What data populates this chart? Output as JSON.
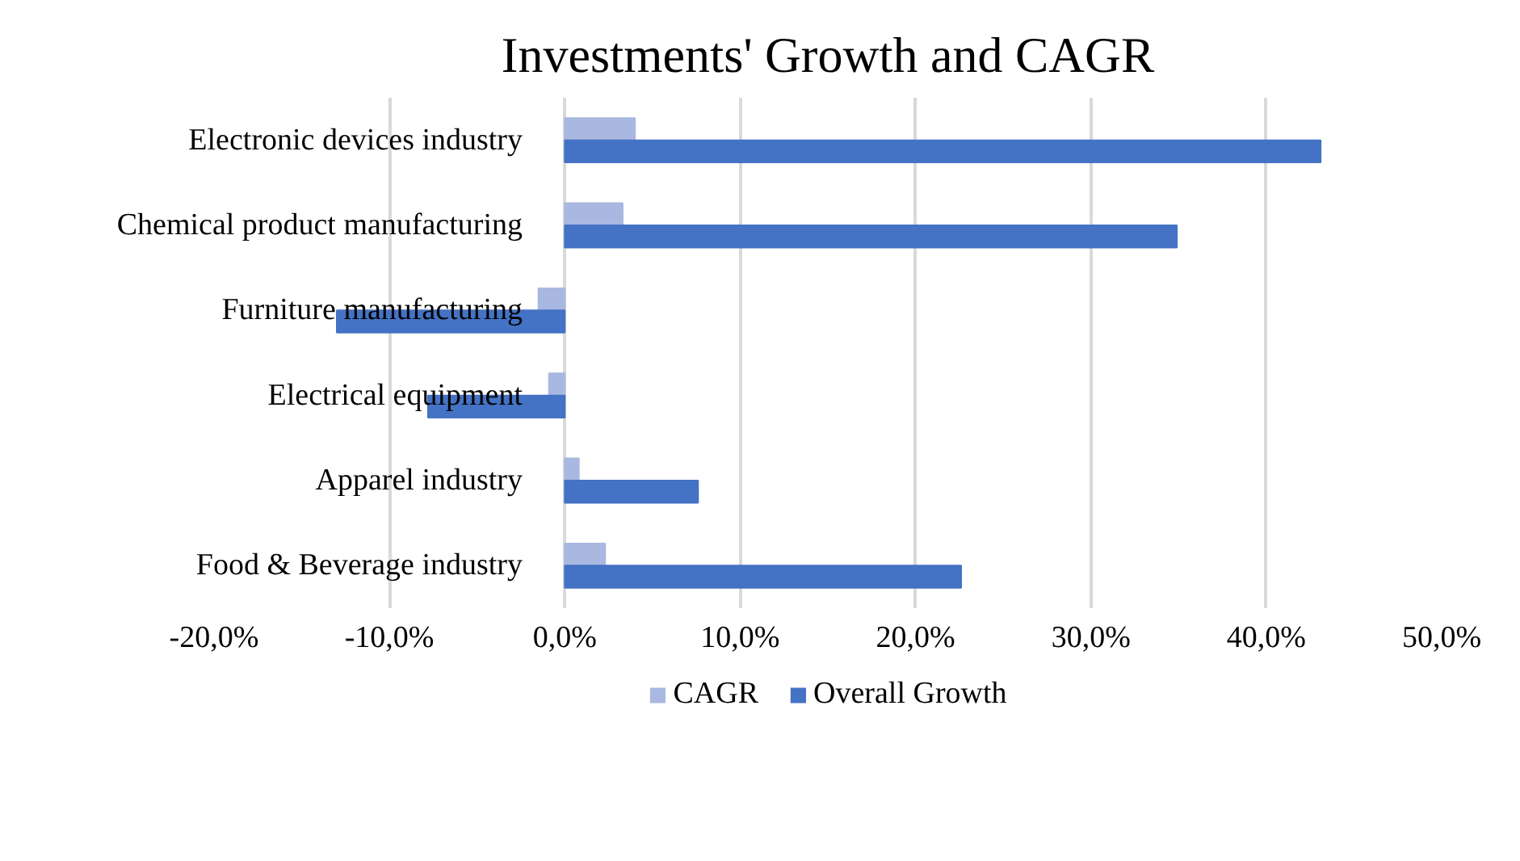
{
  "chart_data": {
    "type": "bar",
    "orientation": "horizontal",
    "title": "Investments' Growth and CAGR",
    "categories": [
      "Electronic devices industry",
      "Chemical product manufacturing",
      "Furniture manufacturing",
      "Electrical equipment",
      "Apparel industry",
      "Food & Beverage industry"
    ],
    "series": [
      {
        "name": "CAGR",
        "color": "#a9b8e0",
        "values": [
          4.0,
          3.3,
          -1.5,
          -0.9,
          0.8,
          2.3
        ]
      },
      {
        "name": "Overall Growth",
        "color": "#4472c4",
        "values": [
          43.1,
          34.9,
          -13.0,
          -7.8,
          7.6,
          22.6
        ]
      }
    ],
    "xlim": [
      -20,
      50
    ],
    "xticks": [
      {
        "value": -20,
        "label": "-20,0%"
      },
      {
        "value": -10,
        "label": "-10,0%"
      },
      {
        "value": 0,
        "label": "0,0%"
      },
      {
        "value": 10,
        "label": "10,0%"
      },
      {
        "value": 20,
        "label": "20,0%"
      },
      {
        "value": 30,
        "label": "30,0%"
      },
      {
        "value": 40,
        "label": "40,0%"
      },
      {
        "value": 50,
        "label": "50,0%"
      }
    ],
    "grid": "x",
    "legend": "bottom"
  }
}
